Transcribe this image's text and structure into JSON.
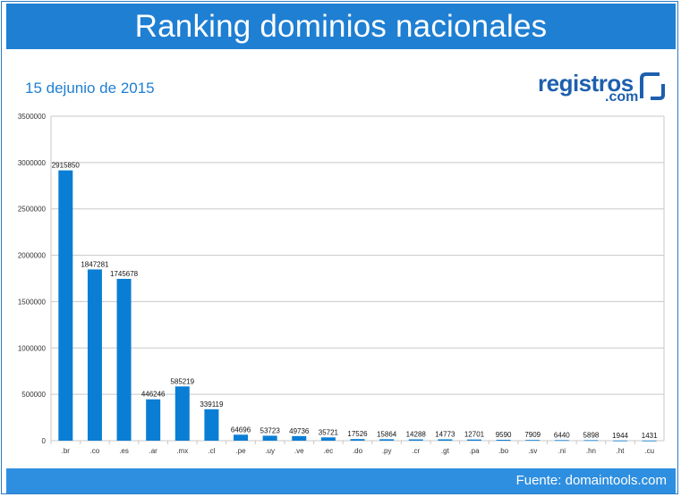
{
  "header": {
    "title": "Ranking dominios nacionales"
  },
  "subtitle": "15 dejunio de 2015",
  "logo": {
    "main": "registros",
    "sub": ".com"
  },
  "footer": {
    "source": "Fuente: domaintools.com"
  },
  "colors": {
    "header_bg": "#1e7fd3",
    "bar": "#0a7ed4",
    "footer_bg": "#2e8fe0",
    "logo": "#1d5fae"
  },
  "chart_data": {
    "type": "bar",
    "title": "",
    "xlabel": "",
    "ylabel": "",
    "ylim": [
      0,
      3500000
    ],
    "yticks": [
      0,
      500000,
      1000000,
      1500000,
      2000000,
      2500000,
      3000000,
      3500000
    ],
    "grid": true,
    "categories": [
      ".br",
      ".co",
      ".es",
      ".ar",
      ".mx",
      ".cl",
      ".pe",
      ".uy",
      ".ve",
      ".ec",
      ".do",
      ".py",
      ".cr",
      ".gt",
      ".pa",
      ".bo",
      ".sv",
      ".ni",
      ".hn",
      ".ht",
      ".cu"
    ],
    "values": [
      2915850,
      1847281,
      1745678,
      446246,
      585219,
      339119,
      64696,
      53723,
      49736,
      35721,
      17526,
      15864,
      14288,
      14773,
      12701,
      9590,
      7909,
      6440,
      5898,
      1944,
      1431
    ]
  }
}
